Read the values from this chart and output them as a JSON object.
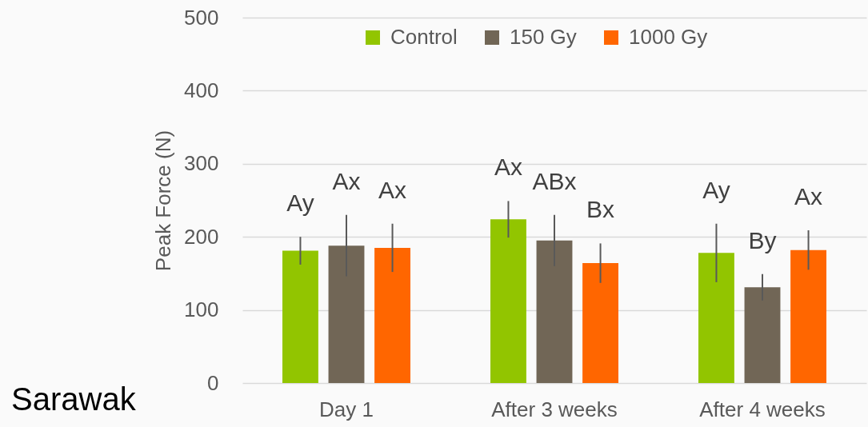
{
  "chart_data": {
    "type": "bar",
    "categories": [
      "Day 1",
      "After 3 weeks",
      "After 4 weeks"
    ],
    "ylabel": "Peak Force (N)",
    "ylim": [
      0,
      500
    ],
    "yticks": [
      0,
      100,
      200,
      300,
      400,
      500
    ],
    "grid": "y",
    "legend": "top",
    "annotations": [
      "Sarawak"
    ],
    "series": [
      {
        "name": "Control",
        "color": "#92c500",
        "values": [
          181,
          224,
          178
        ],
        "errors": [
          19,
          25,
          40
        ],
        "value_labels": [
          "Ay",
          "Ax",
          "Ay"
        ]
      },
      {
        "name": "150 Gy",
        "color": "#716656",
        "values": [
          188,
          195,
          131
        ],
        "errors": [
          42,
          35,
          18
        ],
        "value_labels": [
          "Ax",
          "ABx",
          "By"
        ]
      },
      {
        "name": "1000 Gy",
        "color": "#ff6600",
        "values": [
          185,
          164,
          182
        ],
        "errors": [
          33,
          27,
          27
        ],
        "value_labels": [
          "Ax",
          "Bx",
          "Ax"
        ]
      }
    ]
  }
}
